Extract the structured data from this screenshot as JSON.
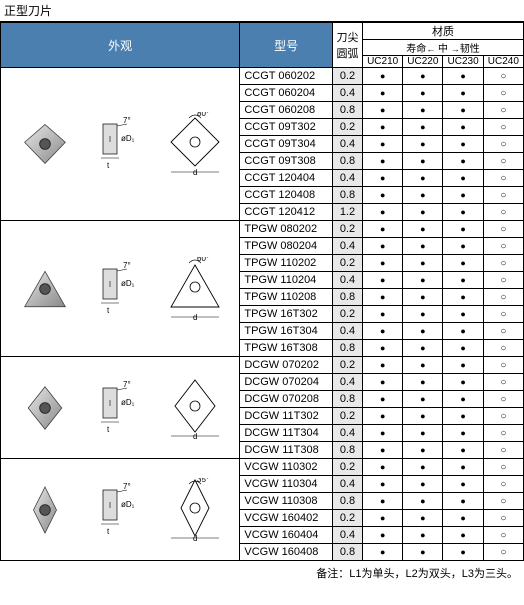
{
  "title": "正型刀片",
  "headers": {
    "appearance": "外观",
    "model": "型号",
    "nose_arc": "刀尖\n圆弧",
    "material": "材质",
    "life": "寿命",
    "mid": "中",
    "tough": "韧性",
    "cols": [
      "UC210",
      "UC220",
      "UC230",
      "UC240"
    ]
  },
  "footnote": "备注：L1为单头，L2为双头，L3为三头。",
  "diag_labels": {
    "angle80": "80°",
    "angle60": "60°",
    "angle7": "7°",
    "angle35": "35°",
    "d": "d",
    "t": "t",
    "phiD1": "øD₁"
  },
  "groups": [
    {
      "shape": "rhombus80",
      "rows": [
        {
          "model": "CCGT 060202",
          "arc": "0.2",
          "m": [
            "d",
            "d",
            "d",
            "c"
          ]
        },
        {
          "model": "CCGT 060204",
          "arc": "0.4",
          "m": [
            "d",
            "d",
            "d",
            "c"
          ]
        },
        {
          "model": "CCGT 060208",
          "arc": "0.8",
          "m": [
            "d",
            "d",
            "d",
            "c"
          ]
        },
        {
          "model": "CCGT 09T302",
          "arc": "0.2",
          "m": [
            "d",
            "d",
            "d",
            "c"
          ]
        },
        {
          "model": "CCGT 09T304",
          "arc": "0.4",
          "m": [
            "d",
            "d",
            "d",
            "c"
          ]
        },
        {
          "model": "CCGT 09T308",
          "arc": "0.8",
          "m": [
            "d",
            "d",
            "d",
            "c"
          ]
        },
        {
          "model": "CCGT 120404",
          "arc": "0.4",
          "m": [
            "d",
            "d",
            "d",
            "c"
          ]
        },
        {
          "model": "CCGT 120408",
          "arc": "0.8",
          "m": [
            "d",
            "d",
            "d",
            "c"
          ]
        },
        {
          "model": "CCGT 120412",
          "arc": "1.2",
          "m": [
            "d",
            "d",
            "d",
            "c"
          ]
        }
      ]
    },
    {
      "shape": "triangle60",
      "rows": [
        {
          "model": "TPGW 080202",
          "arc": "0.2",
          "m": [
            "d",
            "d",
            "d",
            "c"
          ]
        },
        {
          "model": "TPGW 080204",
          "arc": "0.4",
          "m": [
            "d",
            "d",
            "d",
            "c"
          ]
        },
        {
          "model": "TPGW 110202",
          "arc": "0.2",
          "m": [
            "d",
            "d",
            "d",
            "c"
          ]
        },
        {
          "model": "TPGW 110204",
          "arc": "0.4",
          "m": [
            "d",
            "d",
            "d",
            "c"
          ]
        },
        {
          "model": "TPGW 110208",
          "arc": "0.8",
          "m": [
            "d",
            "d",
            "d",
            "c"
          ]
        },
        {
          "model": "TPGW 16T302",
          "arc": "0.2",
          "m": [
            "d",
            "d",
            "d",
            "c"
          ]
        },
        {
          "model": "TPGW 16T304",
          "arc": "0.4",
          "m": [
            "d",
            "d",
            "d",
            "c"
          ]
        },
        {
          "model": "TPGW 16T308",
          "arc": "0.8",
          "m": [
            "d",
            "d",
            "d",
            "c"
          ]
        }
      ]
    },
    {
      "shape": "rhombus55",
      "rows": [
        {
          "model": "DCGW 070202",
          "arc": "0.2",
          "m": [
            "d",
            "d",
            "d",
            "c"
          ]
        },
        {
          "model": "DCGW 070204",
          "arc": "0.4",
          "m": [
            "d",
            "d",
            "d",
            "c"
          ]
        },
        {
          "model": "DCGW 070208",
          "arc": "0.8",
          "m": [
            "d",
            "d",
            "d",
            "c"
          ]
        },
        {
          "model": "DCGW 11T302",
          "arc": "0.2",
          "m": [
            "d",
            "d",
            "d",
            "c"
          ]
        },
        {
          "model": "DCGW 11T304",
          "arc": "0.4",
          "m": [
            "d",
            "d",
            "d",
            "c"
          ]
        },
        {
          "model": "DCGW 11T308",
          "arc": "0.8",
          "m": [
            "d",
            "d",
            "d",
            "c"
          ]
        }
      ]
    },
    {
      "shape": "rhombus35",
      "rows": [
        {
          "model": "VCGW 110302",
          "arc": "0.2",
          "m": [
            "d",
            "d",
            "d",
            "c"
          ]
        },
        {
          "model": "VCGW 110304",
          "arc": "0.4",
          "m": [
            "d",
            "d",
            "d",
            "c"
          ]
        },
        {
          "model": "VCGW 110308",
          "arc": "0.8",
          "m": [
            "d",
            "d",
            "d",
            "c"
          ]
        },
        {
          "model": "VCGW 160402",
          "arc": "0.2",
          "m": [
            "d",
            "d",
            "d",
            "c"
          ]
        },
        {
          "model": "VCGW 160404",
          "arc": "0.4",
          "m": [
            "d",
            "d",
            "d",
            "c"
          ]
        },
        {
          "model": "VCGW 160408",
          "arc": "0.8",
          "m": [
            "d",
            "d",
            "d",
            "c"
          ]
        }
      ]
    }
  ]
}
